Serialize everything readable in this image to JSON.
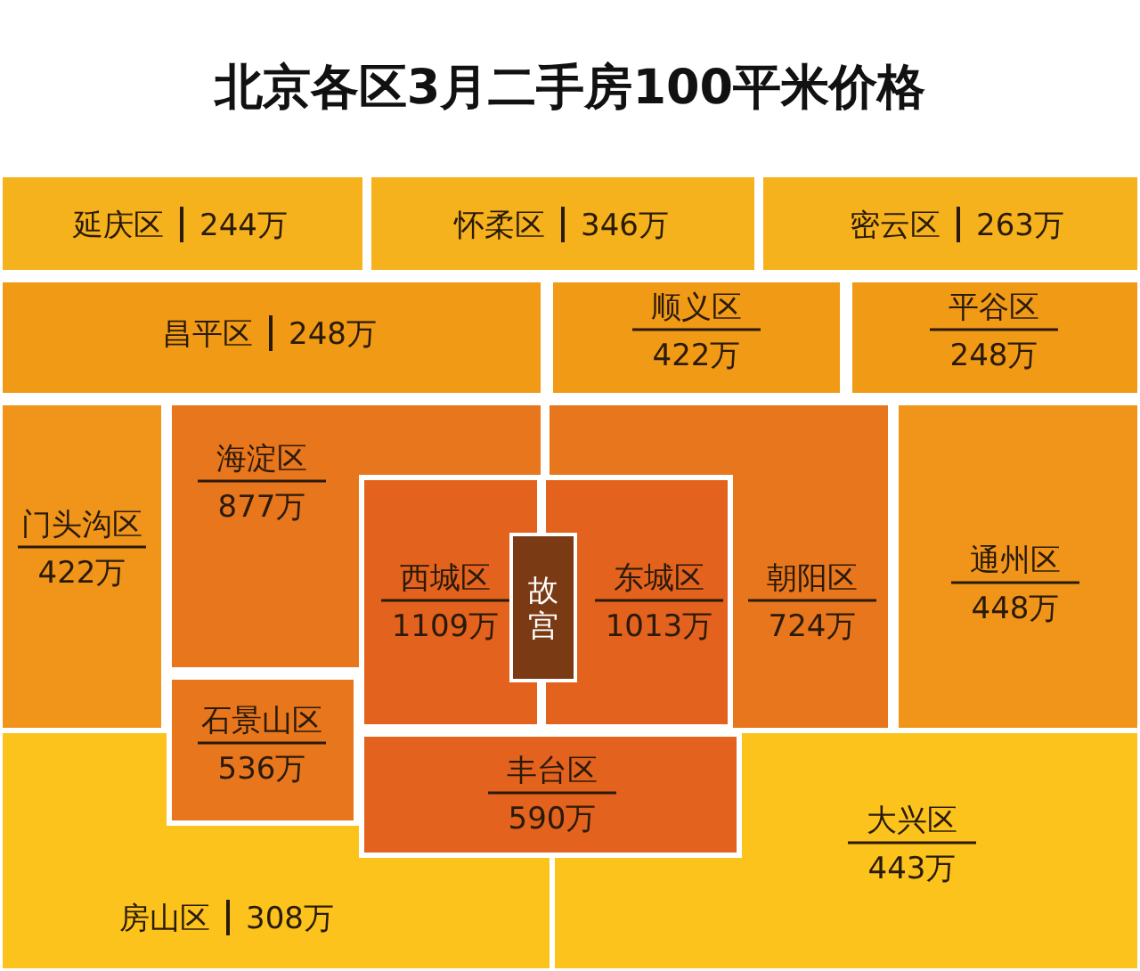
{
  "chart_data": {
    "type": "other",
    "title": "北京各区3月二手房100平米价格",
    "categories": [
      "延庆区",
      "怀柔区",
      "密云区",
      "昌平区",
      "顺义区",
      "平谷区",
      "门头沟区",
      "海淀区",
      "西城区",
      "东城区",
      "朝阳区",
      "通州区",
      "石景山区",
      "丰台区",
      "房山区",
      "大兴区"
    ],
    "values": [
      244,
      346,
      263,
      248,
      422,
      248,
      422,
      877,
      1109,
      1013,
      724,
      448,
      536,
      590,
      308,
      443
    ],
    "value_labels": [
      "244万",
      "346万",
      "263万",
      "248万",
      "422万",
      "248万",
      "422万",
      "877万",
      "1109万",
      "1013万",
      "724万",
      "448万",
      "536万",
      "590万",
      "308万",
      "443万"
    ],
    "colors": [
      "#f6b21c",
      "#f6b21c",
      "#f6b21c",
      "#f09a16",
      "#f09a16",
      "#f09a16",
      "#f0951a",
      "#e8761c",
      "#e3621d",
      "#e3621d",
      "#e8761c",
      "#f0951a",
      "#e8761c",
      "#e3621d",
      "#fbc31c",
      "#fbc31c"
    ],
    "annotations": [
      "故宫"
    ]
  }
}
